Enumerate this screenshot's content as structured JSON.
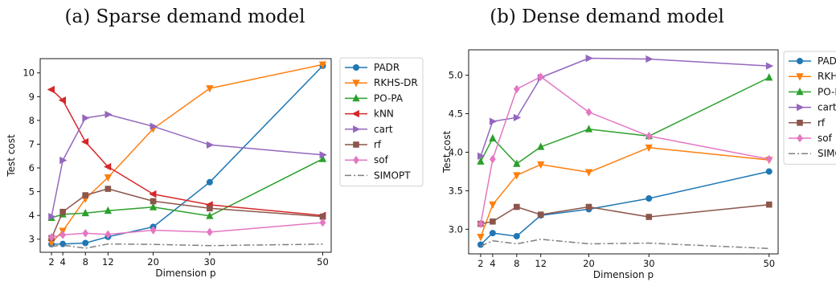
{
  "captions": [
    "(a) Sparse demand model",
    "(b) Dense demand model"
  ],
  "chart_data": [
    {
      "type": "line",
      "title": "",
      "xlabel": "Dimension p",
      "ylabel": "Test cost",
      "xlim": [
        0,
        51.5
      ],
      "ylim": [
        2.45,
        10.6
      ],
      "xticks": [
        2,
        4,
        8,
        12,
        20,
        30,
        50
      ],
      "yticks": [
        3,
        4,
        5,
        6,
        7,
        8,
        9,
        10
      ],
      "grid": false,
      "legend_position": "outside right",
      "x": [
        2,
        4,
        8,
        12,
        20,
        30,
        50
      ],
      "series": [
        {
          "name": "PADR",
          "color": "#1f77b4",
          "marker": "circle",
          "values": [
            2.79,
            2.8,
            2.84,
            3.1,
            3.52,
            5.4,
            10.3
          ]
        },
        {
          "name": "RKHS-DR",
          "color": "#ff7f0e",
          "marker": "triangle-down",
          "values": [
            2.85,
            3.35,
            4.7,
            5.6,
            7.65,
            9.35,
            10.35
          ]
        },
        {
          "name": "PO-PA",
          "color": "#2ca02c",
          "marker": "triangle-up",
          "values": [
            3.9,
            4.05,
            4.1,
            4.2,
            4.35,
            3.98,
            6.38
          ]
        },
        {
          "name": "kNN",
          "color": "#d62728",
          "marker": "triangle-left",
          "values": [
            9.3,
            8.85,
            7.1,
            6.05,
            4.9,
            4.45,
            4.0
          ]
        },
        {
          "name": "cart",
          "color": "#9467bd",
          "marker": "triangle-right",
          "values": [
            3.95,
            6.32,
            8.1,
            8.25,
            7.75,
            6.97,
            6.55
          ]
        },
        {
          "name": "rf",
          "color": "#8c564b",
          "marker": "square",
          "values": [
            3.05,
            4.15,
            4.85,
            5.12,
            4.6,
            4.3,
            3.95
          ]
        },
        {
          "name": "sof",
          "color": "#e377c2",
          "marker": "diamond",
          "values": [
            3.08,
            3.18,
            3.25,
            3.2,
            3.38,
            3.3,
            3.7
          ]
        },
        {
          "name": "SIMOPT",
          "color": "#7f7f7f",
          "marker": "none",
          "dash": "dashdot",
          "values": [
            2.7,
            2.75,
            2.62,
            2.8,
            2.78,
            2.73,
            2.79
          ]
        }
      ]
    },
    {
      "type": "line",
      "title": "",
      "xlabel": "Dimension p",
      "ylabel": "Test cost",
      "xlim": [
        0,
        51.5
      ],
      "ylim": [
        2.68,
        5.33
      ],
      "xticks": [
        2,
        4,
        8,
        12,
        20,
        30,
        50
      ],
      "yticks": [
        3.0,
        3.5,
        4.0,
        4.5,
        5.0
      ],
      "grid": false,
      "legend_position": "outside right",
      "x": [
        2,
        4,
        8,
        12,
        20,
        30,
        50
      ],
      "series": [
        {
          "name": "PADR",
          "color": "#1f77b4",
          "marker": "circle",
          "values": [
            2.8,
            2.95,
            2.91,
            3.18,
            3.26,
            3.4,
            3.75
          ]
        },
        {
          "name": "RKHS-DR",
          "color": "#ff7f0e",
          "marker": "triangle-down",
          "values": [
            2.9,
            3.32,
            3.7,
            3.84,
            3.74,
            4.06,
            3.9
          ]
        },
        {
          "name": "PO-PA",
          "color": "#2ca02c",
          "marker": "triangle-up",
          "values": [
            3.88,
            4.18,
            3.85,
            4.07,
            4.3,
            4.21,
            4.97
          ]
        },
        {
          "name": "cart",
          "color": "#9467bd",
          "marker": "triangle-right",
          "values": [
            3.95,
            4.4,
            4.45,
            4.97,
            5.22,
            5.21,
            5.12
          ]
        },
        {
          "name": "rf",
          "color": "#8c564b",
          "marker": "square",
          "values": [
            3.07,
            3.1,
            3.29,
            3.19,
            3.29,
            3.16,
            3.32
          ]
        },
        {
          "name": "sof",
          "color": "#e377c2",
          "marker": "diamond",
          "values": [
            3.07,
            3.91,
            4.82,
            4.98,
            4.52,
            4.21,
            3.91
          ]
        },
        {
          "name": "SIMOPT",
          "color": "#7f7f7f",
          "marker": "none",
          "dash": "dashdot",
          "values": [
            2.78,
            2.85,
            2.81,
            2.87,
            2.81,
            2.82,
            2.75
          ]
        }
      ]
    }
  ]
}
